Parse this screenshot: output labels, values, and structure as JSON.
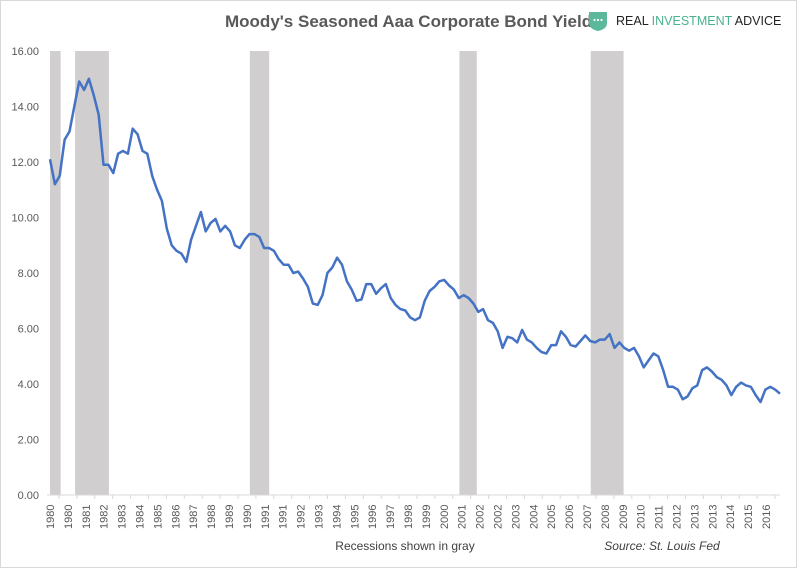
{
  "chart_data": {
    "type": "line",
    "title": "Moody's Seasoned Aaa Corporate Bond Yield",
    "xlabel": "",
    "ylabel": "",
    "ylim": [
      0,
      16
    ],
    "yticks": [
      "0.00",
      "2.00",
      "4.00",
      "6.00",
      "8.00",
      "10.00",
      "12.00",
      "14.00",
      "16.00"
    ],
    "xlim": [
      1980,
      2017.8
    ],
    "xtick_labels": [
      "1980",
      "1980",
      "1981",
      "1982",
      "1983",
      "1984",
      "1985",
      "1986",
      "1987",
      "1988",
      "1989",
      "1990",
      "1991",
      "1991",
      "1992",
      "1993",
      "1994",
      "1995",
      "1996",
      "1997",
      "1998",
      "1999",
      "2000",
      "2001",
      "2002",
      "2002",
      "2003",
      "2004",
      "2005",
      "2006",
      "2007",
      "2008",
      "2009",
      "2010",
      "2011",
      "2012",
      "2013",
      "2013",
      "2014",
      "2015",
      "2016"
    ],
    "series": [
      {
        "name": "Aaa Yield",
        "color": "#4472C4",
        "x_start": 1980,
        "x_step": 0.25,
        "values": [
          12.1,
          11.2,
          11.5,
          12.8,
          13.1,
          14.0,
          14.9,
          14.6,
          15.0,
          14.4,
          13.7,
          11.9,
          11.9,
          11.6,
          12.3,
          12.4,
          12.3,
          13.2,
          13.0,
          12.4,
          12.3,
          11.5,
          11.0,
          10.6,
          9.6,
          9.0,
          8.8,
          8.7,
          8.4,
          9.2,
          9.7,
          10.2,
          9.5,
          9.8,
          9.95,
          9.5,
          9.7,
          9.5,
          9.0,
          8.9,
          9.2,
          9.4,
          9.4,
          9.3,
          8.9,
          8.9,
          8.8,
          8.5,
          8.3,
          8.3,
          8.0,
          8.05,
          7.8,
          7.5,
          6.9,
          6.85,
          7.2,
          8.0,
          8.2,
          8.55,
          8.3,
          7.7,
          7.4,
          7.0,
          7.05,
          7.6,
          7.6,
          7.25,
          7.45,
          7.6,
          7.1,
          6.85,
          6.7,
          6.65,
          6.4,
          6.3,
          6.4,
          7.0,
          7.35,
          7.5,
          7.7,
          7.75,
          7.55,
          7.4,
          7.1,
          7.2,
          7.1,
          6.9,
          6.6,
          6.7,
          6.3,
          6.2,
          5.9,
          5.3,
          5.7,
          5.65,
          5.5,
          5.95,
          5.6,
          5.5,
          5.3,
          5.15,
          5.1,
          5.4,
          5.4,
          5.9,
          5.7,
          5.4,
          5.35,
          5.55,
          5.75,
          5.55,
          5.5,
          5.6,
          5.6,
          5.8,
          5.3,
          5.5,
          5.3,
          5.2,
          5.3,
          5.0,
          4.6,
          4.85,
          5.1,
          5.0,
          4.5,
          3.9,
          3.9,
          3.8,
          3.45,
          3.55,
          3.85,
          3.95,
          4.5,
          4.6,
          4.45,
          4.25,
          4.15,
          3.95,
          3.6,
          3.9,
          4.05,
          3.95,
          3.9,
          3.6,
          3.35,
          3.8,
          3.9,
          3.8,
          3.65
        ]
      }
    ],
    "recessions": [
      [
        1980.0,
        1980.55
      ],
      [
        1981.3,
        1983.05
      ],
      [
        1990.35,
        1991.35
      ],
      [
        2001.2,
        2002.1
      ],
      [
        2008.0,
        2009.7
      ]
    ],
    "recession_color": "#D0CECE",
    "annotations": [
      "Recessions shown in gray",
      "Source: St. Louis Fed"
    ]
  },
  "logo": {
    "part1": "REAL ",
    "part2": "INVESTMENT",
    "part3": " ADVICE"
  }
}
